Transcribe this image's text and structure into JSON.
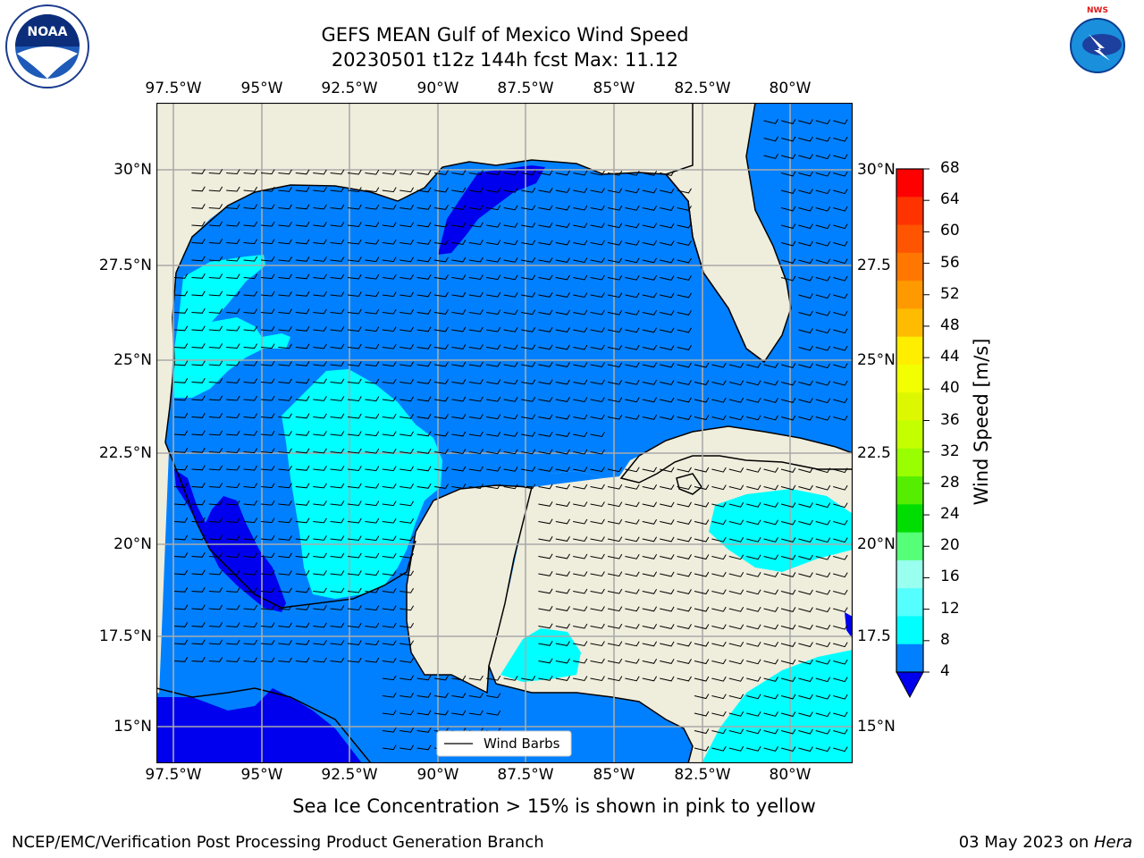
{
  "title_line1": "GEFS MEAN Gulf of Mexico Wind Speed",
  "title_line2": "20230501 t12z 144h fcst   Max: 11.12",
  "lon_labels": [
    "97.5°W",
    "95°W",
    "92.5°W",
    "90°W",
    "87.5°W",
    "85°W",
    "82.5°W",
    "80°W"
  ],
  "lat_labels": [
    "30°N",
    "27.5°N",
    "25°N",
    "22.5°N",
    "20°N",
    "17.5°N",
    "15°N"
  ],
  "lat_labels_right": [
    "30°N",
    "27.5",
    "25°N",
    "22.5",
    "20°N",
    "17.5",
    "15°N"
  ],
  "colorbar": {
    "label": "Wind Speed [m/s]",
    "ticks": [
      "68",
      "64",
      "60",
      "56",
      "52",
      "48",
      "44",
      "40",
      "36",
      "32",
      "28",
      "24",
      "20",
      "16",
      "12",
      "8",
      "4"
    ],
    "colors": [
      "#ff0000",
      "#ff3300",
      "#ff5500",
      "#ff7700",
      "#ff9900",
      "#ffbb00",
      "#ffee00",
      "#f2ff00",
      "#ddf700",
      "#c4ff00",
      "#99ff00",
      "#55ee00",
      "#00dd00",
      "#55ff77",
      "#99ffee",
      "#55ffff",
      "#00ffff",
      "#0080ff"
    ],
    "extend_color": "#0000ee"
  },
  "legend": {
    "label": "Wind Barbs"
  },
  "bottom_note": "Sea Ice Concentration > 15% is shown in pink to yellow",
  "footer_left": "NCEP/EMC/Verification Post Processing Product Generation Branch",
  "footer_right_date": "03 May 2023 on ",
  "footer_right_host": "Hera",
  "logos": {
    "left": "NOAA",
    "right": "NATIONAL WEATHER SERVICE"
  },
  "map_colors": {
    "land": "#efeddc",
    "ocean": "#0080ff",
    "cyan": "#00ffff",
    "deep": "#0000ee",
    "grid": "#aaaaaa"
  }
}
